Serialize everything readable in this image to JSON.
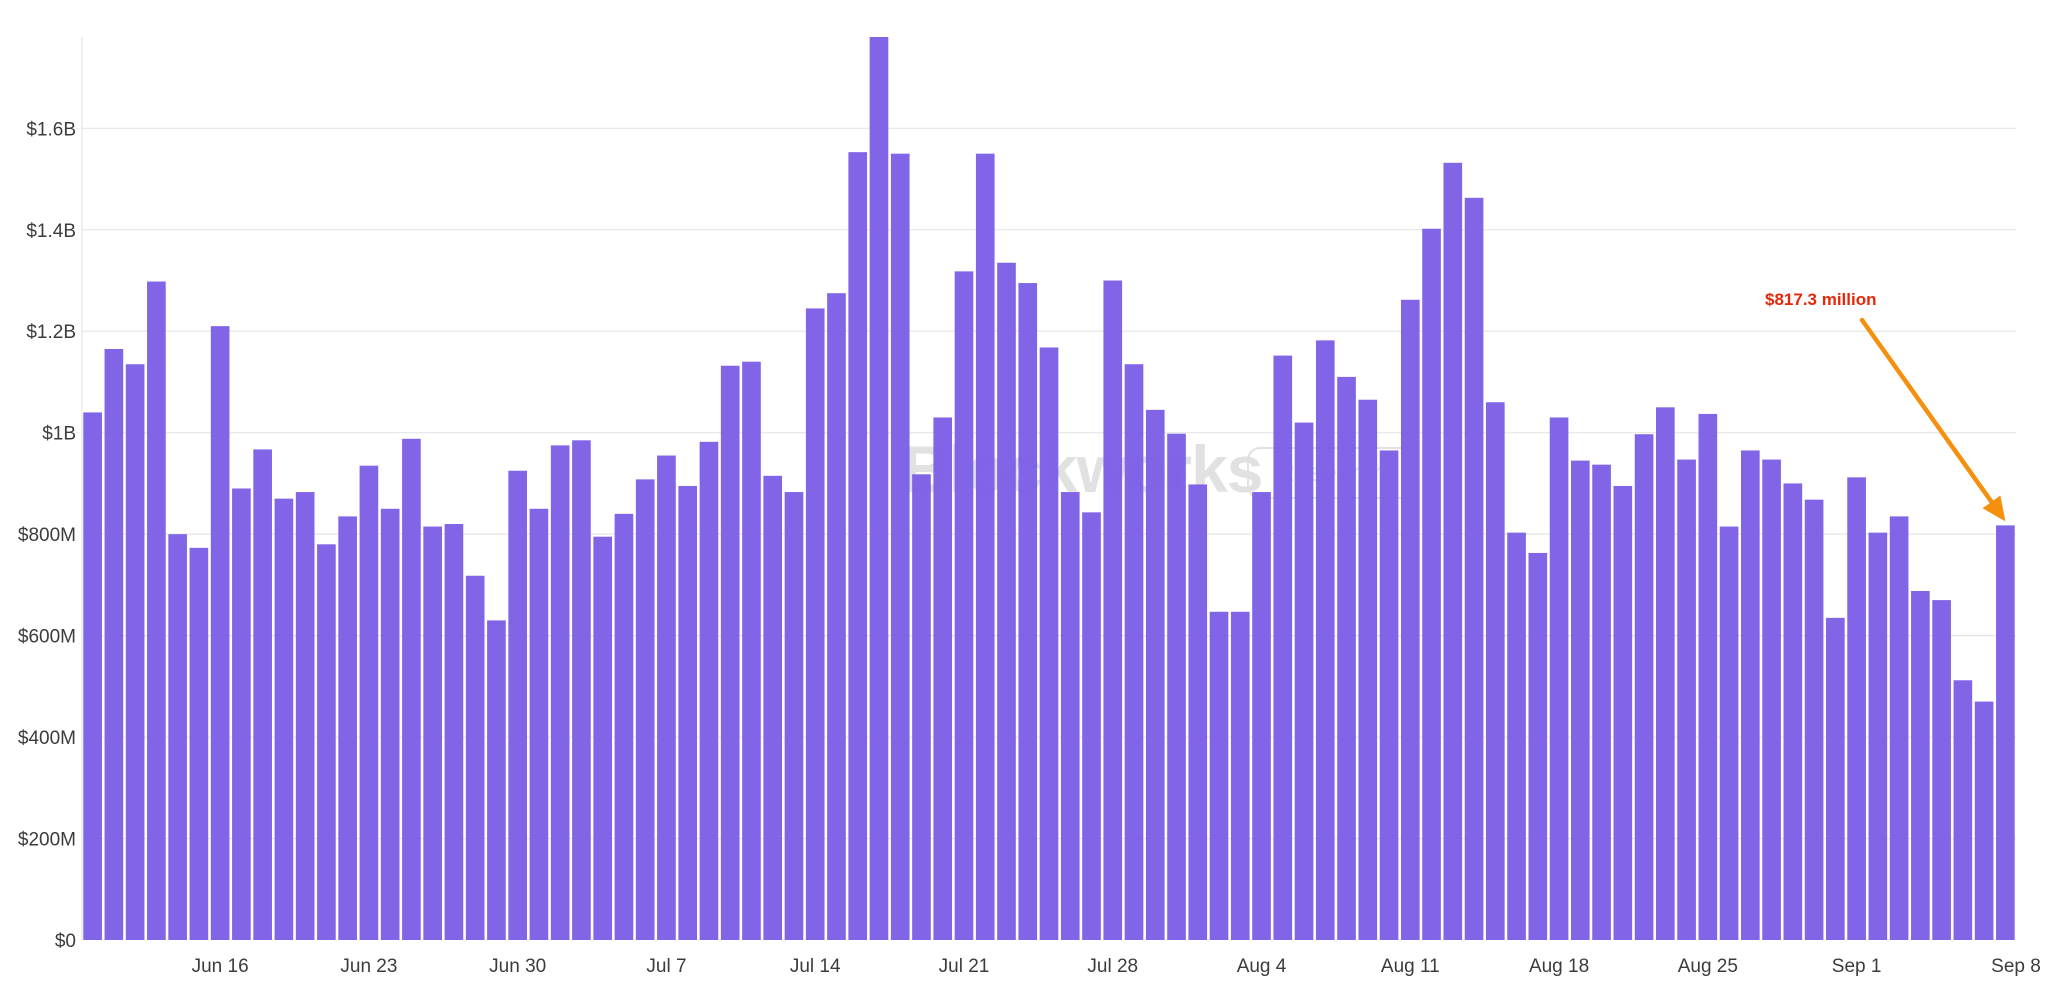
{
  "colors": {
    "bar": "#7b5ce5",
    "grid": "#e6e6e6",
    "axis_text": "#3c3c3c",
    "annotation_text": "#e8260a",
    "annotation_arrow": "#f5900f",
    "watermark": "#c9c9c9"
  },
  "watermark": {
    "brand": "Blockworks",
    "badge": "Research"
  },
  "chart_data": {
    "type": "bar",
    "title": "",
    "xlabel": "",
    "ylabel": "",
    "ylim": [
      0,
      1780000000
    ],
    "y_ticks": [
      {
        "value": 0,
        "label": "$0"
      },
      {
        "value": 200000000,
        "label": "$200M"
      },
      {
        "value": 400000000,
        "label": "$400M"
      },
      {
        "value": 600000000,
        "label": "$600M"
      },
      {
        "value": 800000000,
        "label": "$800M"
      },
      {
        "value": 1000000000,
        "label": "$1B"
      },
      {
        "value": 1200000000,
        "label": "$1.2B"
      },
      {
        "value": 1400000000,
        "label": "$1.4B"
      },
      {
        "value": 1600000000,
        "label": "$1.6B"
      }
    ],
    "x_ticks": [
      {
        "index": 6,
        "label": "Jun 16"
      },
      {
        "index": 13,
        "label": "Jun 23"
      },
      {
        "index": 20,
        "label": "Jun 30"
      },
      {
        "index": 27,
        "label": "Jul 7"
      },
      {
        "index": 34,
        "label": "Jul 14"
      },
      {
        "index": 41,
        "label": "Jul 21"
      },
      {
        "index": 48,
        "label": "Jul 28"
      },
      {
        "index": 55,
        "label": "Aug 4"
      },
      {
        "index": 62,
        "label": "Aug 11"
      },
      {
        "index": 69,
        "label": "Aug 18"
      },
      {
        "index": 76,
        "label": "Aug 25"
      },
      {
        "index": 83,
        "label": "Sep 1"
      },
      {
        "index": 90,
        "label": "Sep 8"
      }
    ],
    "values": [
      1040000000,
      1165000000,
      1135000000,
      1298000000,
      800000000,
      773000000,
      1210000000,
      890000000,
      967000000,
      870000000,
      883000000,
      780000000,
      835000000,
      935000000,
      850000000,
      988000000,
      815000000,
      820000000,
      718000000,
      630000000,
      925000000,
      850000000,
      975000000,
      985000000,
      795000000,
      840000000,
      908000000,
      955000000,
      895000000,
      982000000,
      1132000000,
      1140000000,
      915000000,
      883000000,
      1245000000,
      1275000000,
      1553000000,
      1780000000,
      1550000000,
      918000000,
      1030000000,
      1318000000,
      1550000000,
      1335000000,
      1295000000,
      1168000000,
      883000000,
      843000000,
      1300000000,
      1135000000,
      1045000000,
      998000000,
      898000000,
      647000000,
      647000000,
      883000000,
      1152000000,
      1020000000,
      1182000000,
      1110000000,
      1065000000,
      965000000,
      1262000000,
      1402000000,
      1532000000,
      1463000000,
      1060000000,
      803000000,
      763000000,
      1030000000,
      945000000,
      937000000,
      895000000,
      997000000,
      1050000000,
      947000000,
      1037000000,
      815000000,
      965000000,
      947000000,
      900000000,
      868000000,
      635000000,
      912000000,
      803000000,
      835000000,
      688000000,
      670000000,
      512000000,
      470000000,
      817300000
    ],
    "annotation": {
      "text": "$817.3 million",
      "target_index": 90
    }
  }
}
